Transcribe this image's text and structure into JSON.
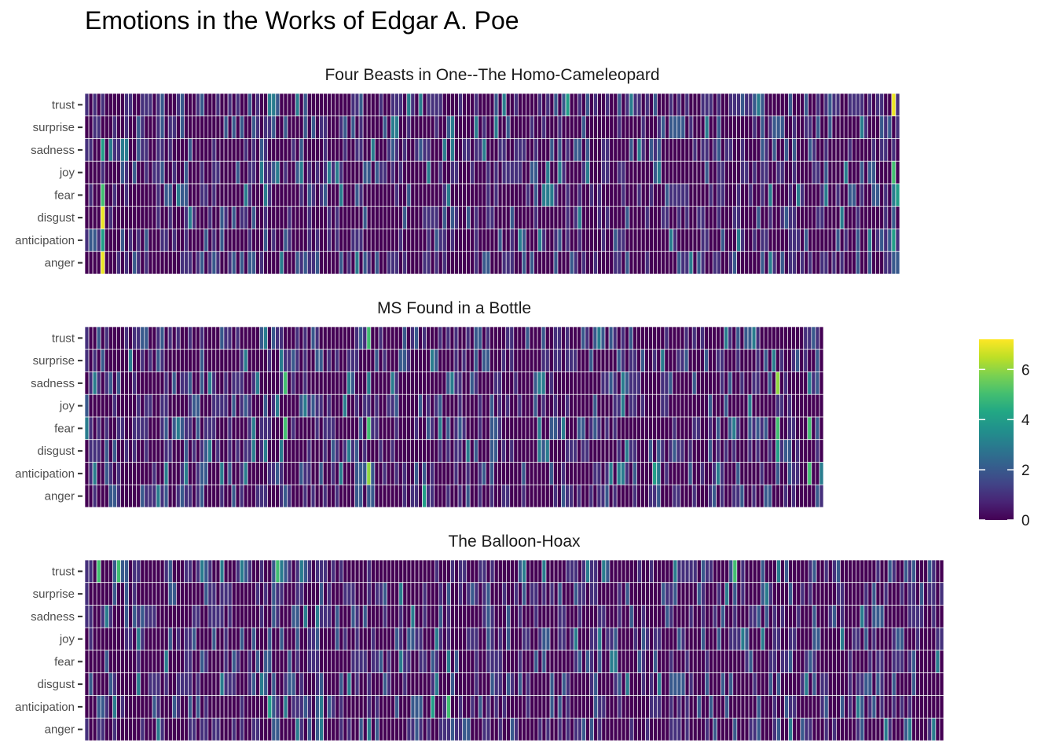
{
  "title": "Emotions in the Works of Edgar A. Poe",
  "chart_data": {
    "type": "heatmap",
    "title": "Emotions in the Works of Edgar A. Poe",
    "emotions": [
      "trust",
      "surprise",
      "sadness",
      "joy",
      "fear",
      "disgust",
      "anticipation",
      "anger"
    ],
    "value_range": [
      0,
      7.2
    ],
    "legend": {
      "position": "right",
      "ticks": [
        0,
        2,
        4,
        6
      ]
    },
    "colorscale": "viridis",
    "panels": [
      {
        "title": "Four Beasts in One--The Homo-Cameleopard",
        "segments": 205,
        "highlights": [
          {
            "emotion": "trust",
            "segment": 203,
            "value": 7.0
          },
          {
            "emotion": "disgust",
            "segment": 4,
            "value": 7.0
          },
          {
            "emotion": "anger",
            "segment": 4,
            "value": 7.0
          },
          {
            "emotion": "fear",
            "segment": 4,
            "value": 5.0
          },
          {
            "emotion": "joy",
            "segment": 203,
            "value": 5.0
          },
          {
            "emotion": "anticipation",
            "segment": 4,
            "value": 4.0
          },
          {
            "emotion": "sadness",
            "segment": 4,
            "value": 4.0
          },
          {
            "emotion": "trust",
            "segment": 121,
            "value": 4.0
          },
          {
            "emotion": "anticipation",
            "segment": 203,
            "value": 4.0
          },
          {
            "emotion": "fear",
            "segment": 204,
            "value": 4.0
          }
        ]
      },
      {
        "title": "MS Found in a Bottle",
        "segments": 186,
        "highlights": [
          {
            "emotion": "trust",
            "segment": 71,
            "value": 5.0
          },
          {
            "emotion": "sadness",
            "segment": 50,
            "value": 5.0
          },
          {
            "emotion": "sadness",
            "segment": 174,
            "value": 6.0
          },
          {
            "emotion": "fear",
            "segment": 50,
            "value": 5.0
          },
          {
            "emotion": "fear",
            "segment": 71,
            "value": 5.0
          },
          {
            "emotion": "fear",
            "segment": 174,
            "value": 5.0
          },
          {
            "emotion": "fear",
            "segment": 182,
            "value": 5.0
          },
          {
            "emotion": "anticipation",
            "segment": 71,
            "value": 6.0
          },
          {
            "emotion": "anticipation",
            "segment": 182,
            "value": 5.0
          },
          {
            "emotion": "anticipation",
            "segment": 143,
            "value": 4.0
          },
          {
            "emotion": "anger",
            "segment": 85,
            "value": 4.0
          },
          {
            "emotion": "disgust",
            "segment": 174,
            "value": 4.0
          }
        ]
      },
      {
        "title": "The Balloon-Hoax",
        "segments": 216,
        "highlights": [
          {
            "emotion": "trust",
            "segment": 3,
            "value": 5.0
          },
          {
            "emotion": "trust",
            "segment": 8,
            "value": 5.0
          },
          {
            "emotion": "trust",
            "segment": 48,
            "value": 5.0
          },
          {
            "emotion": "trust",
            "segment": 163,
            "value": 5.0
          },
          {
            "emotion": "anticipation",
            "segment": 46,
            "value": 4.0
          },
          {
            "emotion": "anticipation",
            "segment": 87,
            "value": 4.0
          },
          {
            "emotion": "anticipation",
            "segment": 91,
            "value": 5.0
          }
        ]
      }
    ]
  }
}
